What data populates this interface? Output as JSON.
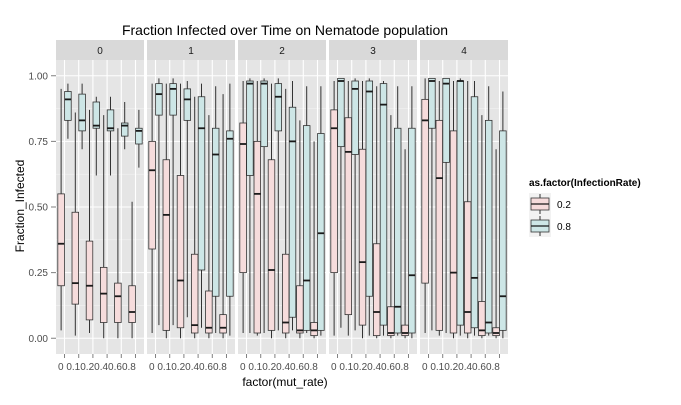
{
  "chart_data": {
    "type": "boxplot",
    "title": "Fraction Infected over Time on Nematode population",
    "xlabel": "factor(mut_rate)",
    "ylabel": "Fraction_Infected",
    "ylim": [
      -0.06,
      1.06
    ],
    "yticks": [
      "0.00",
      "0.25",
      "0.50",
      "0.75",
      "1.00"
    ],
    "ytick_values": [
      0,
      0.25,
      0.5,
      0.75,
      1.0
    ],
    "grid": true,
    "legend": {
      "title": "as.factor(InfectionRate)",
      "placement": "right",
      "entries": [
        {
          "label": "0.2",
          "fill": "#f6dcdc",
          "stroke": "#333333"
        },
        {
          "label": "0.8",
          "fill": "#cde6e6",
          "stroke": "#333333"
        }
      ]
    },
    "categories": [
      "0",
      "0.1",
      "0.2",
      "0.4",
      "0.6",
      "0.8"
    ],
    "category_label_rows": [
      "0 0.10.20.40.60.8",
      "0 0.10.20.40.60.8",
      "0 0.10.20.40.60.8",
      "0 0.10.20.40.60.8",
      "0 0.10.20.40.60.8"
    ],
    "series_names": [
      "0.2",
      "0.8"
    ],
    "panels": [
      {
        "strip": "0",
        "boxes": [
          [
            {
              "lo": 0.03,
              "q1": 0.2,
              "med": 0.36,
              "q3": 0.55,
              "hi": 0.95
            },
            {
              "lo": 0.76,
              "q1": 0.83,
              "med": 0.91,
              "q3": 0.94,
              "hi": 0.97
            }
          ],
          [
            {
              "lo": 0.01,
              "q1": 0.13,
              "med": 0.21,
              "q3": 0.48,
              "hi": 0.86
            },
            {
              "lo": 0.72,
              "q1": 0.79,
              "med": 0.83,
              "q3": 0.93,
              "hi": 0.97
            }
          ],
          [
            {
              "lo": 0.02,
              "q1": 0.07,
              "med": 0.2,
              "q3": 0.37,
              "hi": 0.87
            },
            {
              "lo": 0.62,
              "q1": 0.8,
              "med": 0.81,
              "q3": 0.9,
              "hi": 0.92
            }
          ],
          [
            {
              "lo": 0.0,
              "q1": 0.06,
              "med": 0.17,
              "q3": 0.27,
              "hi": 0.85
            },
            {
              "lo": 0.62,
              "q1": 0.79,
              "med": 0.8,
              "q3": 0.87,
              "hi": 0.92
            }
          ],
          [
            {
              "lo": 0.0,
              "q1": 0.06,
              "med": 0.16,
              "q3": 0.21,
              "hi": 0.8
            },
            {
              "lo": 0.72,
              "q1": 0.77,
              "med": 0.81,
              "q3": 0.82,
              "hi": 0.9
            }
          ],
          [
            {
              "lo": 0.0,
              "q1": 0.06,
              "med": 0.1,
              "q3": 0.2,
              "hi": 0.52
            },
            {
              "lo": 0.65,
              "q1": 0.74,
              "med": 0.79,
              "q3": 0.8,
              "hi": 0.87
            }
          ]
        ]
      },
      {
        "strip": "1",
        "boxes": [
          [
            {
              "lo": 0.02,
              "q1": 0.34,
              "med": 0.64,
              "q3": 0.75,
              "hi": 0.97
            },
            {
              "lo": 0.05,
              "q1": 0.85,
              "med": 0.93,
              "q3": 0.97,
              "hi": 0.99
            }
          ],
          [
            {
              "lo": 0.0,
              "q1": 0.03,
              "med": 0.47,
              "q3": 0.68,
              "hi": 0.97
            },
            {
              "lo": 0.05,
              "q1": 0.85,
              "med": 0.95,
              "q3": 0.97,
              "hi": 0.99
            }
          ],
          [
            {
              "lo": 0.0,
              "q1": 0.04,
              "med": 0.22,
              "q3": 0.62,
              "hi": 0.97
            },
            {
              "lo": 0.08,
              "q1": 0.83,
              "med": 0.91,
              "q3": 0.95,
              "hi": 0.98
            }
          ],
          [
            {
              "lo": 0.0,
              "q1": 0.02,
              "med": 0.05,
              "q3": 0.32,
              "hi": 0.92
            },
            {
              "lo": 0.04,
              "q1": 0.26,
              "med": 0.8,
              "q3": 0.92,
              "hi": 0.97
            }
          ],
          [
            {
              "lo": 0.0,
              "q1": 0.02,
              "med": 0.04,
              "q3": 0.18,
              "hi": 0.85
            },
            {
              "lo": 0.02,
              "q1": 0.16,
              "med": 0.7,
              "q3": 0.8,
              "hi": 0.96
            }
          ],
          [
            {
              "lo": 0.0,
              "q1": 0.02,
              "med": 0.04,
              "q3": 0.09,
              "hi": 0.93
            },
            {
              "lo": 0.01,
              "q1": 0.16,
              "med": 0.76,
              "q3": 0.79,
              "hi": 0.97
            }
          ]
        ]
      },
      {
        "strip": "2",
        "boxes": [
          [
            {
              "lo": 0.02,
              "q1": 0.25,
              "med": 0.74,
              "q3": 0.82,
              "hi": 0.98
            },
            {
              "lo": 0.02,
              "q1": 0.62,
              "med": 0.97,
              "q3": 0.98,
              "hi": 0.99
            }
          ],
          [
            {
              "lo": 0.01,
              "q1": 0.02,
              "med": 0.55,
              "q3": 0.75,
              "hi": 0.98
            },
            {
              "lo": 0.02,
              "q1": 0.73,
              "med": 0.97,
              "q3": 0.98,
              "hi": 0.99
            }
          ],
          [
            {
              "lo": 0.0,
              "q1": 0.03,
              "med": 0.26,
              "q3": 0.68,
              "hi": 0.97
            },
            {
              "lo": 0.03,
              "q1": 0.79,
              "med": 0.92,
              "q3": 0.97,
              "hi": 0.99
            }
          ],
          [
            {
              "lo": 0.0,
              "q1": 0.02,
              "med": 0.06,
              "q3": 0.32,
              "hi": 0.95
            },
            {
              "lo": 0.03,
              "q1": 0.08,
              "med": 0.75,
              "q3": 0.88,
              "hi": 0.98
            }
          ],
          [
            {
              "lo": 0.0,
              "q1": 0.02,
              "med": 0.03,
              "q3": 0.2,
              "hi": 0.83
            },
            {
              "lo": 0.02,
              "q1": 0.03,
              "med": 0.22,
              "q3": 0.81,
              "hi": 0.96
            }
          ],
          [
            {
              "lo": 0.0,
              "q1": 0.01,
              "med": 0.03,
              "q3": 0.06,
              "hi": 0.75
            },
            {
              "lo": 0.01,
              "q1": 0.03,
              "med": 0.4,
              "q3": 0.78,
              "hi": 0.96
            }
          ]
        ]
      },
      {
        "strip": "3",
        "boxes": [
          [
            {
              "lo": 0.01,
              "q1": 0.25,
              "med": 0.8,
              "q3": 0.87,
              "hi": 0.98
            },
            {
              "lo": 0.04,
              "q1": 0.73,
              "med": 0.98,
              "q3": 0.99,
              "hi": 0.99
            }
          ],
          [
            {
              "lo": 0.01,
              "q1": 0.09,
              "med": 0.71,
              "q3": 0.84,
              "hi": 0.98
            },
            {
              "lo": 0.03,
              "q1": 0.7,
              "med": 0.95,
              "q3": 0.98,
              "hi": 0.99
            }
          ],
          [
            {
              "lo": 0.0,
              "q1": 0.05,
              "med": 0.29,
              "q3": 0.72,
              "hi": 0.98
            },
            {
              "lo": 0.01,
              "q1": 0.16,
              "med": 0.94,
              "q3": 0.98,
              "hi": 0.99
            }
          ],
          [
            {
              "lo": 0.0,
              "q1": 0.01,
              "med": 0.1,
              "q3": 0.36,
              "hi": 0.96
            },
            {
              "lo": 0.01,
              "q1": 0.05,
              "med": 0.89,
              "q3": 0.97,
              "hi": 0.98
            }
          ],
          [
            {
              "lo": 0.0,
              "q1": 0.01,
              "med": 0.02,
              "q3": 0.12,
              "hi": 0.85
            },
            {
              "lo": 0.01,
              "q1": 0.02,
              "med": 0.12,
              "q3": 0.8,
              "hi": 0.96
            }
          ],
          [
            {
              "lo": 0.0,
              "q1": 0.01,
              "med": 0.02,
              "q3": 0.05,
              "hi": 0.72
            },
            {
              "lo": 0.0,
              "q1": 0.02,
              "med": 0.24,
              "q3": 0.8,
              "hi": 0.96
            }
          ]
        ]
      },
      {
        "strip": "4",
        "boxes": [
          [
            {
              "lo": 0.02,
              "q1": 0.21,
              "med": 0.83,
              "q3": 0.91,
              "hi": 0.99
            },
            {
              "lo": 0.03,
              "q1": 0.8,
              "med": 0.98,
              "q3": 0.99,
              "hi": 0.99
            }
          ],
          [
            {
              "lo": 0.01,
              "q1": 0.03,
              "med": 0.61,
              "q3": 0.83,
              "hi": 0.98
            },
            {
              "lo": 0.02,
              "q1": 0.67,
              "med": 0.97,
              "q3": 0.99,
              "hi": 0.99
            }
          ],
          [
            {
              "lo": 0.0,
              "q1": 0.02,
              "med": 0.25,
              "q3": 0.79,
              "hi": 0.98
            },
            {
              "lo": 0.01,
              "q1": 0.05,
              "med": 0.98,
              "q3": 0.98,
              "hi": 0.99
            }
          ],
          [
            {
              "lo": 0.0,
              "q1": 0.02,
              "med": 0.1,
              "q3": 0.52,
              "hi": 0.98
            },
            {
              "lo": 0.01,
              "q1": 0.04,
              "med": 0.23,
              "q3": 0.92,
              "hi": 0.98
            }
          ],
          [
            {
              "lo": 0.0,
              "q1": 0.01,
              "med": 0.03,
              "q3": 0.14,
              "hi": 0.85
            },
            {
              "lo": 0.01,
              "q1": 0.02,
              "med": 0.06,
              "q3": 0.83,
              "hi": 0.96
            }
          ],
          [
            {
              "lo": 0.0,
              "q1": 0.01,
              "med": 0.02,
              "q3": 0.04,
              "hi": 0.72
            },
            {
              "lo": 0.0,
              "q1": 0.03,
              "med": 0.16,
              "q3": 0.79,
              "hi": 0.94
            }
          ]
        ]
      }
    ]
  }
}
